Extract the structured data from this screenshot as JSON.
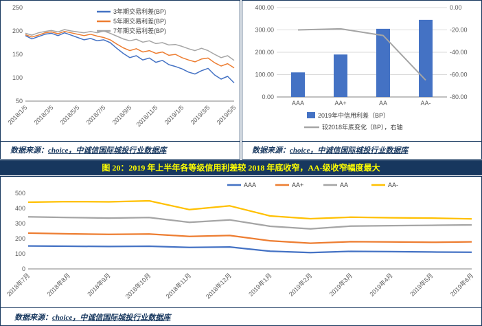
{
  "figure_title": "图 20：2019 年上半年各等级信用利差较 2018 年底收窄，AA-级收窄幅度最大",
  "source_caption": {
    "label": "数据来源：",
    "source": "choice，中诚信国际城投行业数据库"
  },
  "colors": {
    "panel_border": "#17375E",
    "title_bar_bg": "#17375E",
    "title_text": "#FFFF00",
    "series_blue": "#4472C4",
    "series_orange": "#ED7D31",
    "series_gray": "#A5A5A5",
    "series_yellow": "#FFC000",
    "grid": "#D9D9D9",
    "axis": "#808080"
  },
  "chart_data": [
    {
      "id": "trading-spread-trend",
      "type": "line",
      "x_ticks": [
        "2018/1/5",
        "2018/3/5",
        "2018/5/5",
        "2018/7/5",
        "2018/9/5",
        "2018/11/5",
        "2019/1/5",
        "2019/3/5",
        "2019/5/5"
      ],
      "ylim": [
        50,
        250
      ],
      "yticks": [
        50,
        100,
        150,
        200,
        250
      ],
      "grid": false,
      "legend_position": "top-center-vertical",
      "series": [
        {
          "name": "3年期交易利差(BP)",
          "color": "#4472C4",
          "values": [
            190,
            183,
            188,
            193,
            195,
            190,
            196,
            191,
            186,
            181,
            184,
            179,
            181,
            175,
            163,
            152,
            143,
            147,
            138,
            142,
            133,
            137,
            128,
            124,
            119,
            112,
            108,
            115,
            120,
            106,
            97,
            103,
            89
          ]
        },
        {
          "name": "5年期交易利差(BP)",
          "color": "#ED7D31",
          "values": [
            192,
            187,
            191,
            196,
            198,
            194,
            199,
            196,
            193,
            190,
            193,
            189,
            186,
            181,
            172,
            164,
            158,
            162,
            155,
            158,
            152,
            155,
            148,
            150,
            143,
            138,
            134,
            140,
            142,
            132,
            125,
            130,
            121
          ]
        },
        {
          "name": "7年期交易利差(BP)",
          "color": "#A5A5A5",
          "values": [
            195,
            191,
            196,
            199,
            201,
            198,
            203,
            200,
            198,
            196,
            199,
            196,
            200,
            195,
            189,
            183,
            179,
            182,
            176,
            179,
            173,
            175,
            170,
            171,
            167,
            162,
            158,
            163,
            158,
            150,
            143,
            147,
            137
          ]
        }
      ]
    },
    {
      "id": "mid2019-spread-and-change",
      "type": "bar-line",
      "categories": [
        "AAA",
        "AA+",
        "AA",
        "AA-"
      ],
      "left_ylim": [
        0,
        400
      ],
      "left_yticks": [
        "0.00",
        "100.00",
        "200.00",
        "300.00",
        "400.00"
      ],
      "right_ylim": [
        -80,
        0
      ],
      "right_yticks": [
        "0.00",
        "-20.00",
        "-40.00",
        "-60.00",
        "-80.00"
      ],
      "grid": true,
      "legend_position": "bottom",
      "bar_series": {
        "name": "2019年中信用利差（BP）",
        "color": "#4472C4",
        "axis": "left",
        "values": [
          110,
          190,
          305,
          345
        ]
      },
      "line_series": {
        "name": "较2018年底变化（BP），右轴",
        "color": "#A5A5A5",
        "axis": "right",
        "values": [
          -20,
          -19,
          -25,
          -65
        ]
      }
    },
    {
      "id": "monthly-spread-by-grade",
      "type": "line",
      "x_ticks": [
        "2018年7月",
        "2018年8月",
        "2018年9月",
        "2018年10月",
        "2018年11月",
        "2018年12月",
        "2019年1月",
        "2019年2月",
        "2019年3月",
        "2019年4月",
        "2019年5月",
        "2019年6月"
      ],
      "ylim": [
        0,
        500
      ],
      "yticks": [
        0,
        100,
        200,
        300,
        400,
        500
      ],
      "grid": false,
      "legend_position": "top-horizontal",
      "series": [
        {
          "name": "AAA",
          "color": "#4472C4",
          "values": [
            152,
            150,
            148,
            150,
            142,
            145,
            117,
            108,
            116,
            114,
            112,
            110
          ]
        },
        {
          "name": "AA+",
          "color": "#ED7D31",
          "values": [
            237,
            232,
            228,
            231,
            215,
            221,
            186,
            170,
            180,
            178,
            176,
            179
          ]
        },
        {
          "name": "AA",
          "color": "#A5A5A5",
          "values": [
            344,
            340,
            336,
            340,
            308,
            324,
            282,
            265,
            283,
            286,
            288,
            291
          ]
        },
        {
          "name": "AA-",
          "color": "#FFC000",
          "values": [
            441,
            445,
            443,
            450,
            392,
            417,
            350,
            332,
            342,
            338,
            336,
            331
          ]
        }
      ]
    }
  ]
}
